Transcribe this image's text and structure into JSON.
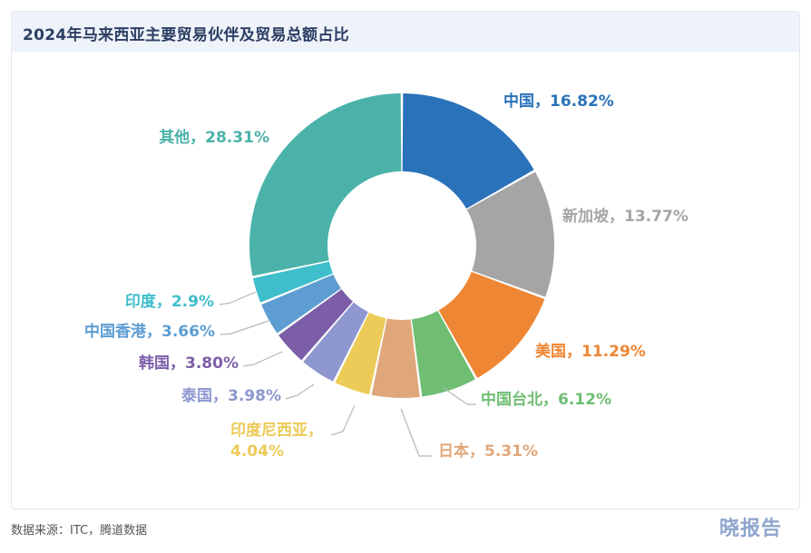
{
  "header": {
    "title": "2024年马来西亚主要贸易伙伴及贸易总额占比"
  },
  "chart_data": {
    "type": "pie",
    "donut": true,
    "title": "2024年马来西亚主要贸易伙伴及贸易总额占比",
    "categories": [
      "中国",
      "新加坡",
      "美国",
      "中国台北",
      "日本",
      "印度尼西亚",
      "泰国",
      "韩国",
      "中国香港",
      "印度",
      "其他"
    ],
    "values": [
      16.82,
      13.77,
      11.29,
      6.12,
      5.31,
      4.04,
      3.98,
      3.8,
      3.66,
      2.9,
      28.31
    ],
    "labels": [
      "中国，16.82%",
      "新加坡，13.77%",
      "美国，11.29%",
      "中国台北，6.12%",
      "日本，5.31%",
      "印度尼西亚，4.04%",
      "泰国，3.98%",
      "韩国，3.80%",
      "中国香港，3.66%",
      "印度，2.9%",
      "其他，28.31%"
    ],
    "colors": [
      "#2a72ba",
      "#a5a5a5",
      "#ef8633",
      "#6fbe73",
      "#e0a77a",
      "#eccb58",
      "#8e97cf",
      "#7b5ea7",
      "#5d9dd2",
      "#3fbecb",
      "#4ab2a9"
    ],
    "legend": "none"
  },
  "footer": {
    "source": "数据来源：ITC，腾道数据",
    "watermark": "晓报告"
  }
}
